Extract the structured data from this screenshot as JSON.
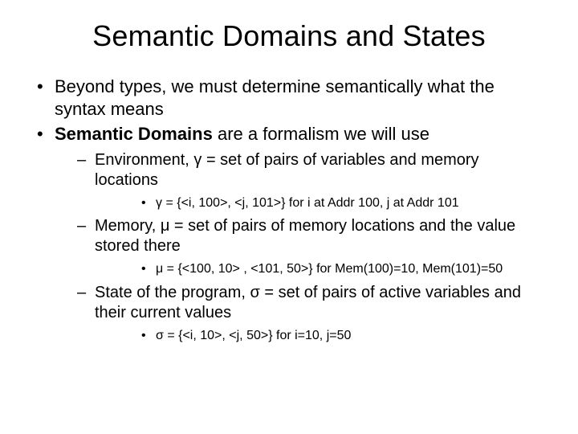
{
  "title": "Semantic Domains and States",
  "b1": "Beyond types, we must determine semantically what the syntax means",
  "b2_bold": "Semantic Domains",
  "b2_rest": " are a formalism we will use",
  "s1": "Environment, γ = set of pairs of variables and memory locations",
  "s1_ex": "γ = {<i, 100>, <j, 101>}  for i at Addr 100, j at Addr 101",
  "s2": "Memory, μ = set of pairs of memory locations and the value stored there",
  "s2_ex": "μ = {<100, 10> , <101, 50>}   for Mem(100)=10, Mem(101)=50",
  "s3": "State of the program, σ = set of pairs of active variables and their current values",
  "s3_ex": "σ = {<i, 10>, <j, 50>}    for i=10, j=50"
}
